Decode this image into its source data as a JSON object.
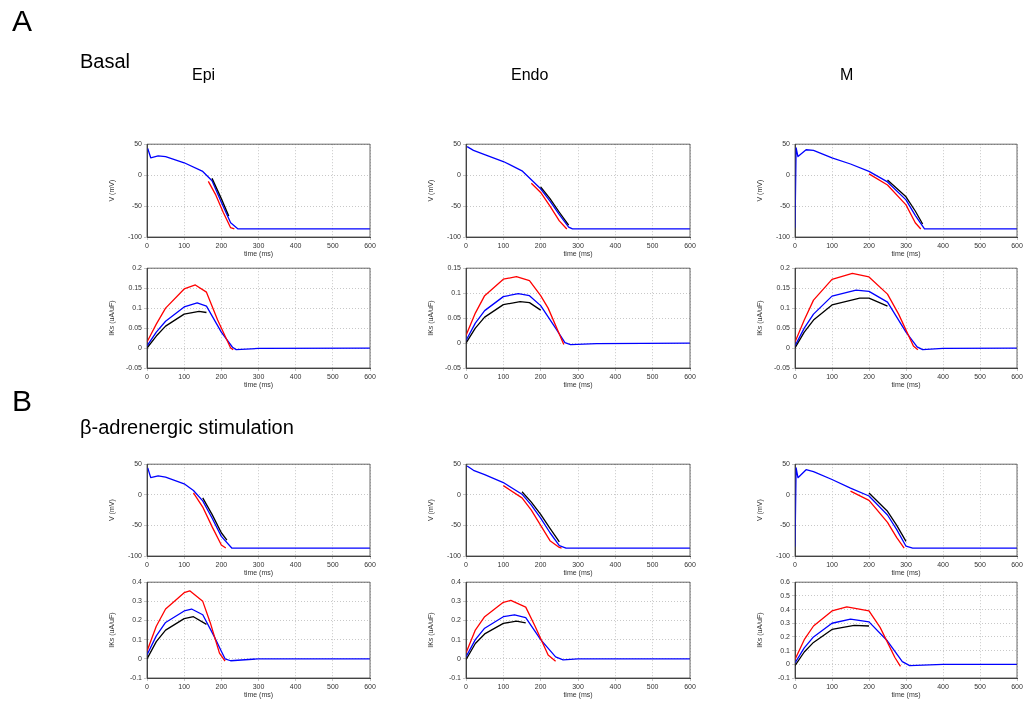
{
  "chart_data": [
    {
      "type": "line",
      "title": "Epi",
      "annotations": [
        "A",
        "Basal"
      ],
      "xlabel": "time (ms)",
      "ylabel": "V (mV)",
      "xlim": [
        0,
        600
      ],
      "xticks": [
        0,
        100,
        200,
        300,
        400,
        500,
        600
      ],
      "ylim": [
        -100,
        50
      ],
      "yticks": [
        -100,
        -50,
        0,
        50
      ],
      "grid": true,
      "marker": "none",
      "series": [
        {
          "color": "#000000",
          "x": [
            175,
            200,
            220
          ],
          "values": [
            -5,
            -38,
            -66
          ]
        },
        {
          "color": "#ff0000",
          "x": [
            165,
            185,
            205,
            225,
            235
          ],
          "values": [
            -10,
            -32,
            -60,
            -85,
            -87
          ]
        },
        {
          "color": "#0000ff",
          "x": [
            2,
            10,
            30,
            50,
            100,
            150,
            175,
            200,
            225,
            245,
            600
          ],
          "values": [
            43,
            28,
            31,
            30,
            20,
            6,
            -9,
            -44,
            -77,
            -87,
            -87
          ]
        }
      ]
    },
    {
      "type": "line",
      "title": "Endo",
      "xlabel": "time (ms)",
      "ylabel": "V (mV)",
      "xlim": [
        0,
        600
      ],
      "xticks": [
        0,
        100,
        200,
        300,
        400,
        500,
        600
      ],
      "ylim": [
        -100,
        50
      ],
      "yticks": [
        -100,
        -50,
        0,
        50
      ],
      "grid": true,
      "marker": "none",
      "series": [
        {
          "color": "#000000",
          "x": [
            200,
            225,
            250,
            275
          ],
          "values": [
            -19,
            -38,
            -60,
            -81
          ]
        },
        {
          "color": "#ff0000",
          "x": [
            175,
            200,
            225,
            250,
            270
          ],
          "values": [
            -13,
            -28,
            -50,
            -74,
            -87
          ]
        },
        {
          "color": "#0000ff",
          "x": [
            3,
            20,
            50,
            100,
            150,
            200,
            225,
            250,
            275,
            285,
            600
          ],
          "values": [
            46,
            40,
            33,
            22,
            7,
            -22,
            -42,
            -64,
            -84,
            -87,
            -87
          ]
        }
      ]
    },
    {
      "type": "line",
      "title": "M",
      "xlabel": "time (ms)",
      "ylabel": "V (mV)",
      "xlim": [
        0,
        600
      ],
      "xticks": [
        0,
        100,
        200,
        300,
        400,
        500,
        600
      ],
      "ylim": [
        -100,
        50
      ],
      "yticks": [
        -100,
        -50,
        0,
        50
      ],
      "grid": true,
      "marker": "none",
      "series": [
        {
          "color": "#000000",
          "x": [
            250,
            300,
            325,
            345
          ],
          "values": [
            -8,
            -35,
            -58,
            -79
          ]
        },
        {
          "color": "#ff0000",
          "x": [
            200,
            250,
            300,
            325,
            340
          ],
          "values": [
            2,
            -16,
            -48,
            -77,
            -87
          ]
        },
        {
          "color": "#0000ff",
          "x": [
            0,
            3,
            8,
            30,
            50,
            100,
            150,
            200,
            250,
            300,
            325,
            350,
            600
          ],
          "values": [
            -85,
            44,
            30,
            41,
            40,
            28,
            18,
            6,
            -11,
            -40,
            -65,
            -87,
            -87
          ]
        }
      ]
    },
    {
      "type": "line",
      "xlabel": "time (ms)",
      "ylabel": "IKs (uA/uF)",
      "xlim": [
        0,
        600
      ],
      "xticks": [
        0,
        100,
        200,
        300,
        400,
        500,
        600
      ],
      "ylim": [
        -0.05,
        0.2
      ],
      "yticks": [
        -0.05,
        0,
        0.05,
        0.1,
        0.15,
        0.2
      ],
      "grid": true,
      "marker": "none",
      "series": [
        {
          "color": "#000000",
          "x": [
            0,
            25,
            50,
            100,
            140,
            160
          ],
          "values": [
            0,
            0.03,
            0.055,
            0.085,
            0.092,
            0.089
          ]
        },
        {
          "color": "#ff0000",
          "x": [
            0,
            25,
            50,
            100,
            130,
            160,
            190,
            225,
            232
          ],
          "values": [
            0.015,
            0.06,
            0.1,
            0.148,
            0.158,
            0.14,
            0.07,
            0,
            -0.004
          ]
        },
        {
          "color": "#0000ff",
          "x": [
            0,
            25,
            50,
            100,
            135,
            160,
            200,
            230,
            240,
            300,
            600
          ],
          "values": [
            0.005,
            0.04,
            0.067,
            0.103,
            0.113,
            0.105,
            0.04,
            0.002,
            -0.004,
            -0.001,
            0
          ]
        }
      ]
    },
    {
      "type": "line",
      "xlabel": "time (ms)",
      "ylabel": "IKs (uA/uF)",
      "xlim": [
        0,
        600
      ],
      "xticks": [
        0,
        100,
        200,
        300,
        400,
        500,
        600
      ],
      "ylim": [
        -0.05,
        0.15
      ],
      "yticks": [
        -0.05,
        0,
        0.05,
        0.1,
        0.15
      ],
      "grid": true,
      "marker": "none",
      "series": [
        {
          "color": "#000000",
          "x": [
            0,
            25,
            50,
            100,
            145,
            170,
            200
          ],
          "values": [
            0,
            0.03,
            0.052,
            0.077,
            0.083,
            0.081,
            0.066
          ]
        },
        {
          "color": "#ff0000",
          "x": [
            0,
            25,
            50,
            100,
            135,
            170,
            200,
            220,
            262
          ],
          "values": [
            0.015,
            0.06,
            0.095,
            0.128,
            0.133,
            0.125,
            0.095,
            0.07,
            -0.003
          ]
        },
        {
          "color": "#0000ff",
          "x": [
            0,
            25,
            50,
            100,
            140,
            170,
            200,
            240,
            265,
            280,
            350,
            600
          ],
          "values": [
            0.005,
            0.04,
            0.065,
            0.093,
            0.099,
            0.095,
            0.075,
            0.03,
            0.001,
            -0.003,
            -0.001,
            0
          ]
        }
      ]
    },
    {
      "type": "line",
      "xlabel": "time (ms)",
      "ylabel": "IKs (uA/uF)",
      "xlim": [
        0,
        600
      ],
      "xticks": [
        0,
        100,
        200,
        300,
        400,
        500,
        600
      ],
      "ylim": [
        -0.05,
        0.2
      ],
      "yticks": [
        -0.05,
        0,
        0.05,
        0.1,
        0.15,
        0.2
      ],
      "grid": true,
      "marker": "none",
      "series": [
        {
          "color": "#000000",
          "x": [
            0,
            25,
            50,
            100,
            175,
            200,
            250
          ],
          "values": [
            0,
            0.04,
            0.07,
            0.108,
            0.125,
            0.125,
            0.105
          ]
        },
        {
          "color": "#ff0000",
          "x": [
            0,
            25,
            50,
            100,
            155,
            200,
            250,
            280,
            320,
            332
          ],
          "values": [
            0.015,
            0.07,
            0.12,
            0.172,
            0.187,
            0.178,
            0.135,
            0.085,
            0.005,
            -0.004
          ]
        },
        {
          "color": "#0000ff",
          "x": [
            0,
            25,
            50,
            100,
            165,
            200,
            250,
            300,
            330,
            345,
            400,
            600
          ],
          "values": [
            0.005,
            0.05,
            0.085,
            0.13,
            0.145,
            0.142,
            0.115,
            0.04,
            0.003,
            -0.004,
            -0.001,
            0
          ]
        }
      ]
    },
    {
      "type": "line",
      "annotations": [
        "B",
        "β-adrenergic stimulation"
      ],
      "xlabel": "time (ms)",
      "ylabel": "V (mV)",
      "xlim": [
        0,
        600
      ],
      "xticks": [
        0,
        100,
        200,
        300,
        400,
        500,
        600
      ],
      "ylim": [
        -100,
        50
      ],
      "yticks": [
        -100,
        -50,
        0,
        50
      ],
      "grid": true,
      "marker": "none",
      "series": [
        {
          "color": "#000000",
          "x": [
            150,
            175,
            200,
            215
          ],
          "values": [
            -5,
            -32,
            -62,
            -74
          ]
        },
        {
          "color": "#ff0000",
          "x": [
            125,
            150,
            175,
            200,
            212
          ],
          "values": [
            3,
            -20,
            -52,
            -82,
            -87
          ]
        },
        {
          "color": "#0000ff",
          "x": [
            2,
            10,
            30,
            50,
            100,
            125,
            150,
            175,
            200,
            228,
            600
          ],
          "values": [
            44,
            28,
            31,
            29,
            18,
            7,
            -10,
            -38,
            -68,
            -87,
            -87
          ]
        }
      ]
    },
    {
      "type": "line",
      "xlabel": "time (ms)",
      "ylabel": "V (mV)",
      "xlim": [
        0,
        600
      ],
      "xticks": [
        0,
        100,
        200,
        300,
        400,
        500,
        600
      ],
      "ylim": [
        -100,
        50
      ],
      "yticks": [
        -100,
        -50,
        0,
        50
      ],
      "grid": true,
      "marker": "none",
      "series": [
        {
          "color": "#000000",
          "x": [
            150,
            175,
            200,
            225,
            250
          ],
          "values": [
            5,
            -12,
            -32,
            -55,
            -77
          ]
        },
        {
          "color": "#ff0000",
          "x": [
            100,
            150,
            175,
            200,
            225,
            250,
            256
          ],
          "values": [
            15,
            -5,
            -25,
            -50,
            -75,
            -86,
            -87
          ]
        },
        {
          "color": "#0000ff",
          "x": [
            3,
            20,
            50,
            100,
            150,
            175,
            200,
            225,
            250,
            268,
            600
          ],
          "values": [
            47,
            40,
            33,
            20,
            1,
            -17,
            -38,
            -62,
            -83,
            -87,
            -87
          ]
        }
      ]
    },
    {
      "type": "line",
      "xlabel": "time (ms)",
      "ylabel": "V (mV)",
      "xlim": [
        0,
        600
      ],
      "xticks": [
        0,
        100,
        200,
        300,
        400,
        500,
        600
      ],
      "ylim": [
        -100,
        50
      ],
      "yticks": [
        -100,
        -50,
        0,
        50
      ],
      "grid": true,
      "marker": "none",
      "series": [
        {
          "color": "#000000",
          "x": [
            200,
            250,
            275,
            300
          ],
          "values": [
            3,
            -27,
            -50,
            -76
          ]
        },
        {
          "color": "#ff0000",
          "x": [
            150,
            200,
            250,
            275,
            295
          ],
          "values": [
            6,
            -9,
            -45,
            -70,
            -87
          ]
        },
        {
          "color": "#0000ff",
          "x": [
            0,
            3,
            8,
            30,
            50,
            100,
            150,
            200,
            250,
            275,
            300,
            318,
            600
          ],
          "values": [
            -85,
            44,
            28,
            41,
            38,
            25,
            11,
            -2,
            -33,
            -57,
            -84,
            -87,
            -87
          ]
        }
      ]
    },
    {
      "type": "line",
      "xlabel": "time (ms)",
      "ylabel": "IKs (uA/uF)",
      "xlim": [
        0,
        600
      ],
      "xticks": [
        0,
        100,
        200,
        300,
        400,
        500,
        600
      ],
      "ylim": [
        -0.1,
        0.4
      ],
      "yticks": [
        -0.1,
        0,
        0.1,
        0.2,
        0.3,
        0.4
      ],
      "grid": true,
      "marker": "none",
      "series": [
        {
          "color": "#000000",
          "x": [
            0,
            25,
            50,
            100,
            125,
            160
          ],
          "values": [
            0,
            0.09,
            0.15,
            0.21,
            0.22,
            0.18
          ]
        },
        {
          "color": "#ff0000",
          "x": [
            0,
            25,
            50,
            100,
            115,
            150,
            170,
            195,
            210
          ],
          "values": [
            0.04,
            0.17,
            0.26,
            0.345,
            0.355,
            0.3,
            0.19,
            0.03,
            -0.012
          ]
        },
        {
          "color": "#0000ff",
          "x": [
            0,
            25,
            50,
            100,
            120,
            150,
            180,
            200,
            210,
            225,
            300,
            600
          ],
          "values": [
            0.02,
            0.12,
            0.19,
            0.25,
            0.26,
            0.23,
            0.12,
            0.04,
            0,
            -0.01,
            0,
            0
          ]
        }
      ]
    },
    {
      "type": "line",
      "xlabel": "time (ms)",
      "ylabel": "IKs (uA/uF)",
      "xlim": [
        0,
        600
      ],
      "xticks": [
        0,
        100,
        200,
        300,
        400,
        500,
        600
      ],
      "ylim": [
        -0.1,
        0.4
      ],
      "yticks": [
        -0.1,
        0,
        0.1,
        0.2,
        0.3,
        0.4
      ],
      "grid": true,
      "marker": "none",
      "series": [
        {
          "color": "#000000",
          "x": [
            0,
            25,
            50,
            100,
            135,
            160
          ],
          "values": [
            -0.005,
            0.08,
            0.13,
            0.185,
            0.197,
            0.188
          ]
        },
        {
          "color": "#ff0000",
          "x": [
            0,
            25,
            50,
            100,
            120,
            160,
            185,
            220,
            240
          ],
          "values": [
            0.03,
            0.15,
            0.22,
            0.295,
            0.305,
            0.27,
            0.17,
            0.02,
            -0.012
          ]
        },
        {
          "color": "#0000ff",
          "x": [
            0,
            25,
            50,
            100,
            130,
            160,
            200,
            240,
            260,
            300,
            600
          ],
          "values": [
            0.01,
            0.1,
            0.16,
            0.22,
            0.23,
            0.215,
            0.1,
            0.01,
            -0.005,
            0,
            0
          ]
        }
      ]
    },
    {
      "type": "line",
      "xlabel": "time (ms)",
      "ylabel": "IKs (uA/uF)",
      "xlim": [
        0,
        600
      ],
      "xticks": [
        0,
        100,
        200,
        300,
        400,
        500,
        600
      ],
      "ylim": [
        -0.1,
        0.6
      ],
      "yticks": [
        -0.1,
        0,
        0.1,
        0.2,
        0.3,
        0.4,
        0.5,
        0.6
      ],
      "grid": true,
      "marker": "none",
      "series": [
        {
          "color": "#000000",
          "x": [
            0,
            25,
            50,
            100,
            160,
            200
          ],
          "values": [
            -0.01,
            0.09,
            0.16,
            0.255,
            0.285,
            0.28
          ]
        },
        {
          "color": "#ff0000",
          "x": [
            0,
            25,
            50,
            100,
            140,
            200,
            230,
            270,
            285
          ],
          "values": [
            0.035,
            0.18,
            0.28,
            0.39,
            0.42,
            0.39,
            0.27,
            0.05,
            -0.015
          ]
        },
        {
          "color": "#0000ff",
          "x": [
            0,
            25,
            50,
            100,
            150,
            200,
            250,
            290,
            310,
            400,
            600
          ],
          "values": [
            0.01,
            0.12,
            0.2,
            0.3,
            0.33,
            0.31,
            0.17,
            0.02,
            -0.01,
            0,
            0
          ]
        }
      ]
    }
  ]
}
